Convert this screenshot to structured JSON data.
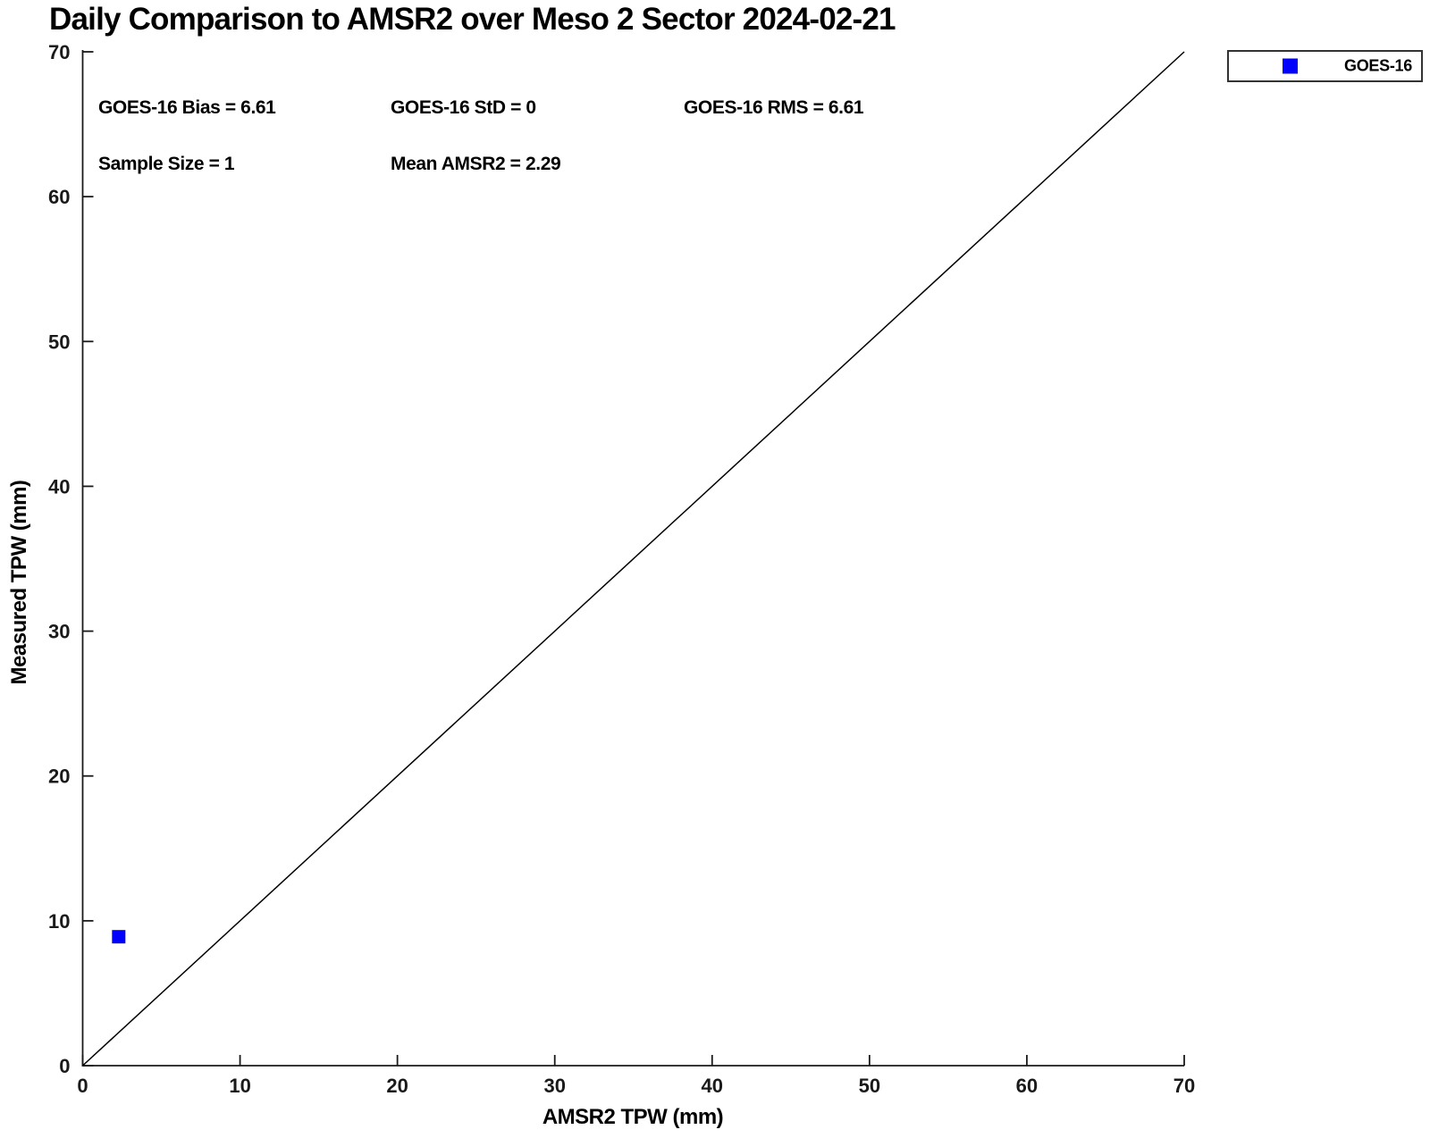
{
  "chart_data": {
    "type": "scatter",
    "title": "Daily Comparison to AMSR2 over Meso 2 Sector 2024-02-21",
    "xlabel": "AMSR2 TPW (mm)",
    "ylabel": "Measured TPW (mm)",
    "xlim": [
      0,
      70
    ],
    "ylim": [
      0,
      70
    ],
    "x_ticks": [
      0,
      10,
      20,
      30,
      40,
      50,
      60,
      70
    ],
    "y_ticks": [
      0,
      10,
      20,
      30,
      40,
      50,
      60,
      70
    ],
    "grid": false,
    "axis_color": "#1a1a1a",
    "reference_line": {
      "type": "identity",
      "from": [
        0,
        0
      ],
      "to": [
        70,
        70
      ],
      "color": "#000000"
    },
    "series": [
      {
        "name": "GOES-16",
        "marker": "square",
        "color": "#0000ff",
        "points": [
          {
            "x": 2.29,
            "y": 8.9
          }
        ]
      }
    ],
    "legend": {
      "position": "top-right-outside",
      "entries": [
        {
          "label": "GOES-16",
          "marker": "square",
          "color": "#0000ff"
        }
      ]
    },
    "annotations": [
      {
        "id": "bias",
        "text": "GOES-16 Bias = 6.61"
      },
      {
        "id": "std",
        "text": "GOES-16 StD = 0"
      },
      {
        "id": "rms",
        "text": "GOES-16 RMS = 6.61"
      },
      {
        "id": "sample",
        "text": "Sample Size = 1"
      },
      {
        "id": "mean",
        "text": "Mean AMSR2 = 2.29"
      }
    ]
  }
}
